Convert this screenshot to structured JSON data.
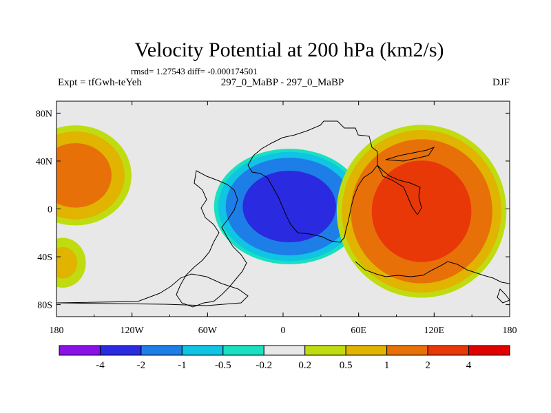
{
  "chart_data": {
    "type": "heatmap",
    "title": "Velocity Potential at 200 hPa (km2/s)",
    "stats_line": "rmsd= 1.27543 diff= -0.000174501",
    "left_label": "Expt = tfGwh-teYeh",
    "center_label": "297_0_MaBP - 297_0_MaBP",
    "right_label": "DJF",
    "x_tick_labels": [
      "180",
      "120W",
      "60W",
      "0",
      "60E",
      "120E",
      "180"
    ],
    "x_tick_values": [
      -180,
      -120,
      -60,
      0,
      60,
      120,
      180
    ],
    "y_tick_labels": [
      "80N",
      "40N",
      "0",
      "40S",
      "80S"
    ],
    "y_tick_values": [
      80,
      40,
      0,
      -40,
      -80
    ],
    "xlim": [
      -180,
      180
    ],
    "ylim": [
      -90,
      90
    ],
    "colorbar": {
      "labels": [
        "-4",
        "-2",
        "-1",
        "-0.5",
        "-0.2",
        "0.2",
        "0.5",
        "1",
        "2",
        "4"
      ],
      "levels": [
        -4,
        -2,
        -1,
        -0.5,
        -0.2,
        0.2,
        0.5,
        1,
        2,
        4
      ],
      "colors": [
        "#8a10e8",
        "#2a2ae0",
        "#1e7ee8",
        "#10c4e4",
        "#18e0c0",
        "#e8e8e8",
        "#c0dc10",
        "#e0b400",
        "#e87008",
        "#e83808",
        "#e00000"
      ]
    },
    "regions": [
      {
        "name": "west-minimum",
        "lon": 5,
        "lat": 2,
        "peak": -3.2,
        "rx": 62,
        "ry": 50
      },
      {
        "name": "east-maximum",
        "lon": 110,
        "lat": -2,
        "peak": 3.0,
        "rx": 70,
        "ry": 75
      },
      {
        "name": "dateline-west-maximum",
        "lon": -165,
        "lat": 28,
        "peak": 1.6,
        "rx": 48,
        "ry": 45
      },
      {
        "name": "south-edge-band",
        "lon": -175,
        "lat": -45,
        "peak": 0.7,
        "rx": 22,
        "ry": 25
      }
    ]
  },
  "colors": {
    "background": "#ffffff",
    "map_background": "#e8e8e8"
  }
}
